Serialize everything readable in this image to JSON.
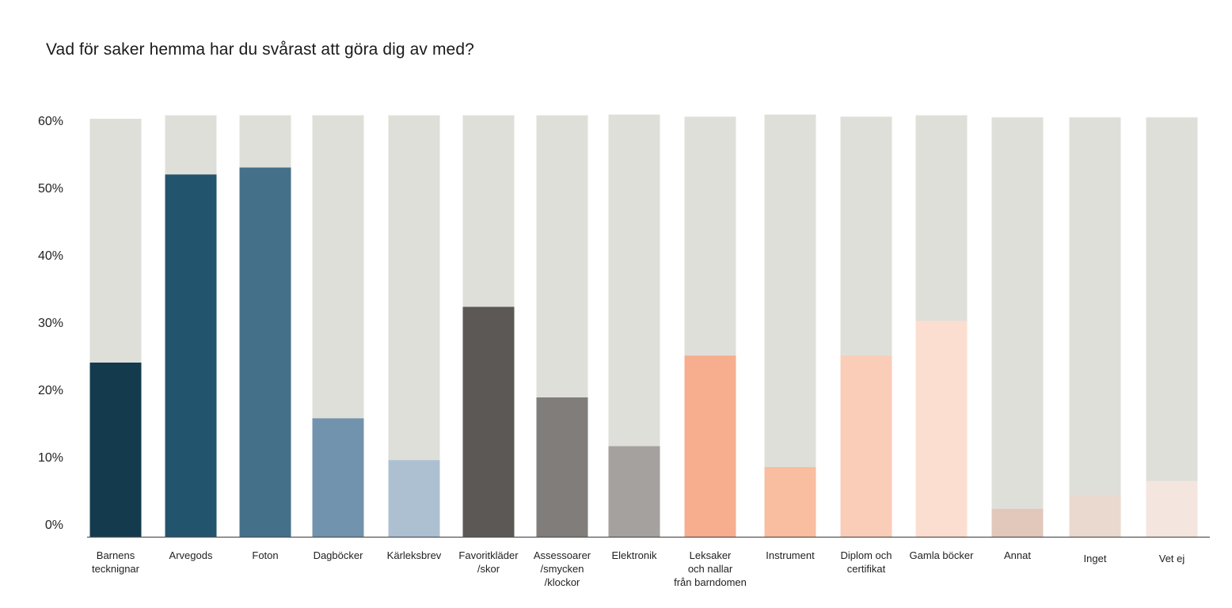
{
  "chart_data": {
    "type": "bar",
    "title": "Vad för saker hemma har du svårast att göra dig av med?",
    "yticks": [
      "0%",
      "10%",
      "20%",
      "30%",
      "40%",
      "50%",
      "60%"
    ],
    "ylim": [
      0,
      60
    ],
    "categories": [
      "Barnens\ntecknignar",
      "Arvegods",
      "Foton",
      "Dagböcker",
      "Kärleksbrev",
      "Favoritkläder\n/skor",
      "Assessoarer\n/smycken\n/klockor",
      "Elektronik",
      "Leksaker\noch nallar\nfrån barndomen",
      "Instrument",
      "Diplom och\ncertifikat",
      "Gamla böcker",
      "Annat",
      "Inget",
      "Vet ej"
    ],
    "values": [
      25,
      52,
      53,
      17,
      11,
      33,
      20,
      13,
      26,
      10,
      26,
      31,
      4,
      6,
      8
    ],
    "background_values": [
      60,
      60.5,
      60.5,
      60.5,
      60.5,
      60.5,
      60.5,
      60.6,
      60.3,
      60.6,
      60.3,
      60.5,
      60.2,
      60.2,
      60.2
    ],
    "colors": [
      "#143a4e",
      "#23546d",
      "#44708a",
      "#7293ad",
      "#adc0d2",
      "#5c5855",
      "#817d7a",
      "#a5a19e",
      "#f7ae8f",
      "#f9bd9f",
      "#facdb9",
      "#fcded1",
      "#e2c7bb",
      "#ead9ce",
      "#f4e6df"
    ],
    "background_color": "#dfdfda",
    "axis_color": "#555555",
    "grid": false,
    "legend": "none"
  }
}
